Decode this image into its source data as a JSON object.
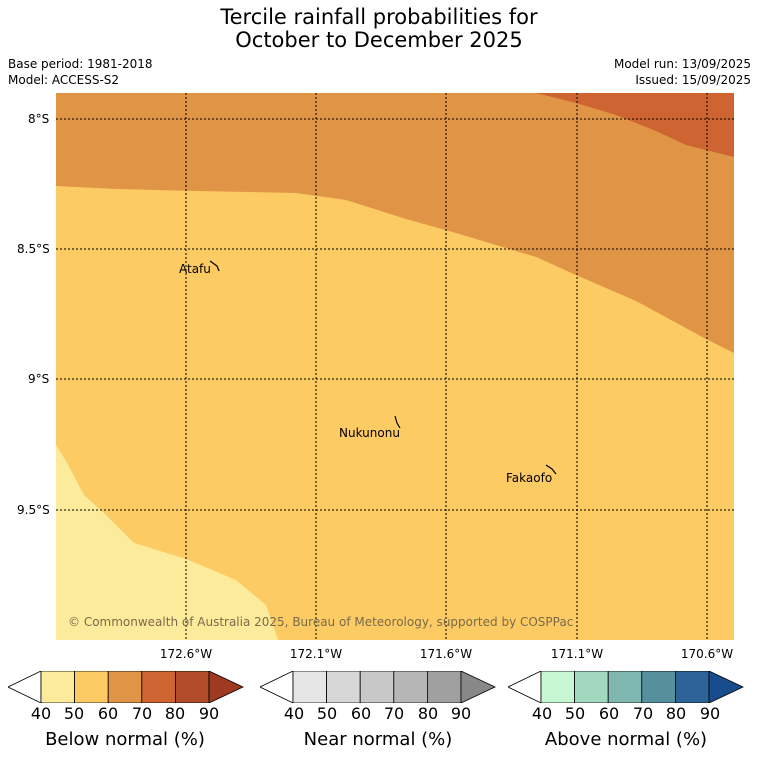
{
  "title": {
    "line1": "Tercile rainfall probabilities for",
    "line2": "October to December 2025"
  },
  "meta": {
    "base_period": "Base period: 1981-2018",
    "model": "Model: ACCESS-S2",
    "model_run": "Model run: 13/09/2025",
    "issued": "Issued: 15/09/2025"
  },
  "axes": {
    "lon_ticks": [
      "172.6°W",
      "172.1°W",
      "171.6°W",
      "171.1°W",
      "170.6°W"
    ],
    "lat_ticks": [
      "8°S",
      "8.5°S",
      "9°S",
      "9.5°S"
    ]
  },
  "places": {
    "atafu": "Atafu",
    "nukunonu": "Nukunonu",
    "fakaofo": "Fakaofo"
  },
  "copyright": "© Commonwealth of Australia 2025, Bureau of Meteorology, supported by COSPPac",
  "legend": {
    "below": {
      "title": "Below normal (%)",
      "colors": [
        "#fdeb9c",
        "#fdcb63",
        "#e09546",
        "#cd6431",
        "#b04c2a",
        "#9e3a1f"
      ]
    },
    "near": {
      "title": "Near normal (%)",
      "colors": [
        "#e6e6e6",
        "#d7d7d7",
        "#c8c8c8",
        "#b6b6b6",
        "#a0a0a0",
        "#888888"
      ]
    },
    "above": {
      "title": "Above normal (%)",
      "colors": [
        "#c6f7d2",
        "#a2d8be",
        "#80b6b0",
        "#568f9e",
        "#2d6396",
        "#184c8c"
      ]
    },
    "ticks": [
      "40",
      "50",
      "60",
      "70",
      "80",
      "90"
    ]
  },
  "map_colors": {
    "below_40_50": "#fdeb9c",
    "below_50_60": "#fdcb63",
    "below_60_70": "#e09546",
    "below_70_80": "#cd6431"
  }
}
